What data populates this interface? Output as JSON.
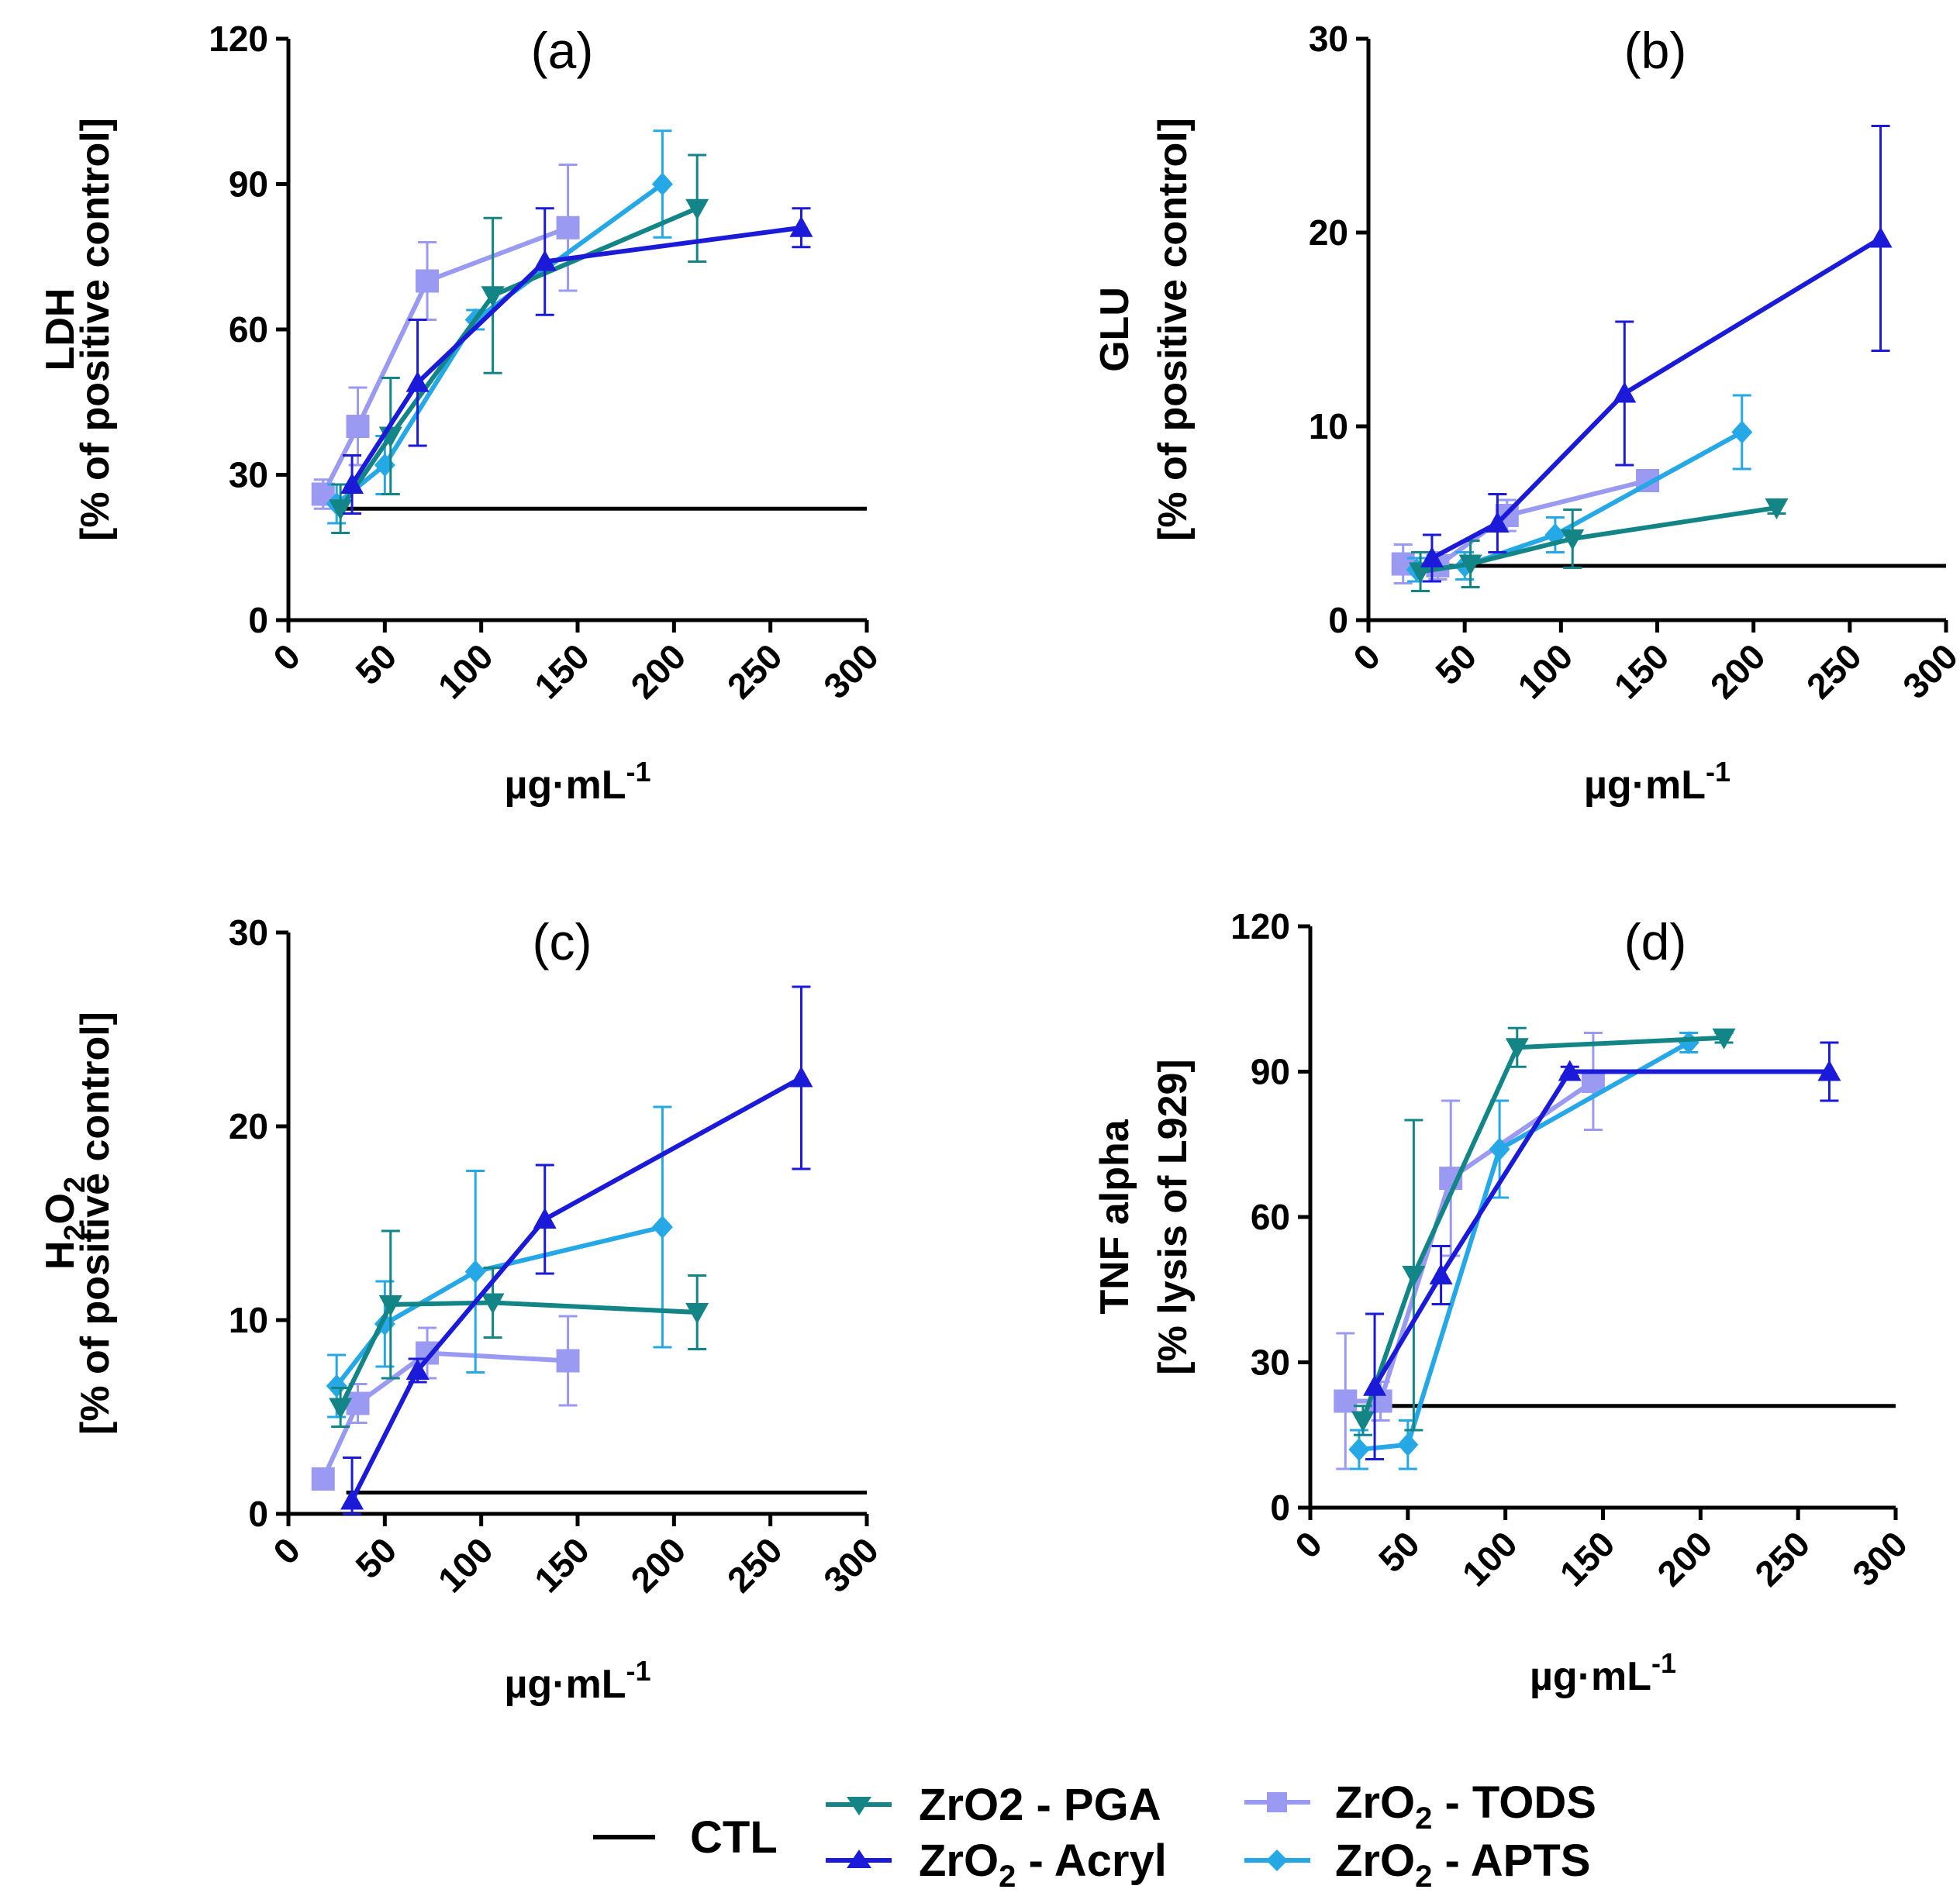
{
  "colors": {
    "ctl": "#000000",
    "pga": "#138586",
    "acryl": "#1a1ad8",
    "tods": "#9a9af2",
    "apts": "#27a8e6"
  },
  "legend": {
    "ctl": "CTL",
    "pga": "ZrO2 - PGA",
    "acryl": {
      "base": "ZrO",
      "sub": "2",
      "rest": " - Acryl"
    },
    "tods": {
      "base": "ZrO",
      "sub": "2",
      "rest": " - TODS"
    },
    "apts": {
      "base": "ZrO",
      "sub": "2",
      "rest": " - APTS"
    }
  },
  "chart_data": [
    {
      "type": "line",
      "panel": "(a)",
      "ylabel_lines": [
        "LDH",
        "[% of positive control]"
      ],
      "xlabel": {
        "base": "µg·mL",
        "sup": "-1"
      },
      "xlim": [
        0,
        300
      ],
      "xticks": [
        "0",
        "50",
        "100",
        "150",
        "200",
        "250",
        "300"
      ],
      "ylim": [
        0,
        120
      ],
      "yticks": [
        "0",
        "30",
        "60",
        "90",
        "120"
      ],
      "ctl": {
        "y": 23,
        "x_start": 25,
        "x_end": 300
      },
      "series": [
        {
          "key": "tods",
          "marker": "square",
          "x": [
            18,
            36,
            72,
            145
          ],
          "y": [
            26,
            40,
            70,
            81
          ],
          "err": [
            3,
            8,
            8,
            13
          ]
        },
        {
          "key": "apts",
          "marker": "diamond",
          "x": [
            25,
            50,
            97,
            194
          ],
          "y": [
            24,
            32,
            62,
            90
          ],
          "err": [
            4,
            6,
            2,
            11
          ]
        },
        {
          "key": "pga",
          "marker": "tri-down",
          "x": [
            27,
            53,
            106,
            212
          ],
          "y": [
            23,
            38,
            67,
            85
          ],
          "err": [
            5,
            12,
            16,
            11
          ]
        },
        {
          "key": "acryl",
          "marker": "tri-up",
          "x": [
            33,
            67,
            133,
            266
          ],
          "y": [
            28,
            49,
            74,
            81
          ],
          "err": [
            6,
            13,
            11,
            4
          ]
        }
      ]
    },
    {
      "type": "line",
      "panel": "(b)",
      "ylabel_lines": [
        "GLU",
        "[% of positive control]"
      ],
      "xlabel": {
        "base": "µg·mL",
        "sup": "-1"
      },
      "xlim": [
        0,
        300
      ],
      "xticks": [
        "0",
        "50",
        "100",
        "150",
        "200",
        "250",
        "300"
      ],
      "ylim": [
        0,
        30
      ],
      "yticks": [
        "0",
        "10",
        "20",
        "30"
      ],
      "ctl": {
        "y": 2.8,
        "x_start": 25,
        "x_end": 300
      },
      "series": [
        {
          "key": "tods",
          "marker": "square",
          "x": [
            18,
            36,
            72,
            145
          ],
          "y": [
            2.9,
            2.8,
            5.4,
            7.2
          ],
          "err": [
            1.0,
            0.7,
            0.8,
            0.3
          ]
        },
        {
          "key": "apts",
          "marker": "diamond",
          "x": [
            25,
            50,
            97,
            194
          ],
          "y": [
            2.6,
            2.8,
            4.4,
            9.7
          ],
          "err": [
            0.6,
            0.7,
            0.9,
            1.9
          ]
        },
        {
          "key": "pga",
          "marker": "tri-down",
          "x": [
            27,
            53,
            106,
            212
          ],
          "y": [
            2.5,
            2.9,
            4.2,
            5.8
          ],
          "err": [
            1.0,
            1.2,
            1.5,
            0.3
          ]
        },
        {
          "key": "acryl",
          "marker": "tri-up",
          "x": [
            33,
            67,
            133,
            266
          ],
          "y": [
            3.2,
            5.0,
            11.7,
            19.7
          ],
          "err": [
            1.2,
            1.5,
            3.7,
            5.8
          ]
        }
      ]
    },
    {
      "type": "line",
      "panel": "(c)",
      "ylabel_lines": [
        {
          "base": "H",
          "sub": "2",
          "mid": "O",
          "sub2": "2"
        },
        "[% of positive control]"
      ],
      "xlabel": {
        "base": "µg·mL",
        "sup": "-1"
      },
      "xlim": [
        0,
        300
      ],
      "xticks": [
        "0",
        "50",
        "100",
        "150",
        "200",
        "250",
        "300"
      ],
      "ylim": [
        0,
        30
      ],
      "yticks": [
        "0",
        "10",
        "20",
        "30"
      ],
      "ctl": {
        "y": 1.1,
        "x_start": 30,
        "x_end": 300
      },
      "series": [
        {
          "key": "tods",
          "marker": "square",
          "x": [
            18,
            36,
            72,
            145
          ],
          "y": [
            1.8,
            5.7,
            8.3,
            7.9
          ],
          "err": [
            0.3,
            1.0,
            1.3,
            2.3
          ]
        },
        {
          "key": "apts",
          "marker": "diamond",
          "x": [
            25,
            50,
            97,
            194
          ],
          "y": [
            6.6,
            9.8,
            12.5,
            14.8
          ],
          "err": [
            1.6,
            2.2,
            5.2,
            6.2
          ]
        },
        {
          "key": "pga",
          "marker": "tri-down",
          "x": [
            27,
            53,
            106,
            212
          ],
          "y": [
            5.5,
            10.8,
            10.9,
            10.4
          ],
          "err": [
            1.0,
            3.8,
            1.8,
            1.9
          ]
        },
        {
          "key": "acryl",
          "marker": "tri-up",
          "x": [
            33,
            67,
            133,
            266
          ],
          "y": [
            0.7,
            7.4,
            15.2,
            22.5
          ],
          "err": [
            2.2,
            0.6,
            2.8,
            4.7
          ]
        }
      ]
    },
    {
      "type": "line",
      "panel": "(d)",
      "ylabel_lines": [
        "TNF alpha",
        "[% lysis of L929]"
      ],
      "xlabel": {
        "base": "µg·mL",
        "sup": "-1"
      },
      "xlim": [
        0,
        300
      ],
      "xticks": [
        "0",
        "50",
        "100",
        "150",
        "200",
        "250",
        "300"
      ],
      "ylim": [
        0,
        120
      ],
      "yticks": [
        "0",
        "30",
        "60",
        "90",
        "120"
      ],
      "ctl": {
        "y": 21,
        "x_start": 30,
        "x_end": 300
      },
      "series": [
        {
          "key": "tods",
          "marker": "square",
          "x": [
            18,
            36,
            72,
            145
          ],
          "y": [
            22,
            22,
            68,
            88
          ],
          "err": [
            14,
            4,
            16,
            10
          ]
        },
        {
          "key": "apts",
          "marker": "diamond",
          "x": [
            25,
            50,
            97,
            194
          ],
          "y": [
            12,
            13,
            74,
            96
          ],
          "err": [
            4,
            5,
            10,
            2
          ]
        },
        {
          "key": "pga",
          "marker": "tri-down",
          "x": [
            27,
            53,
            106,
            212
          ],
          "y": [
            18,
            48,
            95,
            97
          ],
          "err": [
            3,
            32,
            4,
            1
          ]
        },
        {
          "key": "acryl",
          "marker": "tri-up",
          "x": [
            33,
            67,
            133,
            266
          ],
          "y": [
            25,
            48,
            90,
            90
          ],
          "err": [
            15,
            6,
            1,
            6
          ]
        }
      ]
    }
  ]
}
